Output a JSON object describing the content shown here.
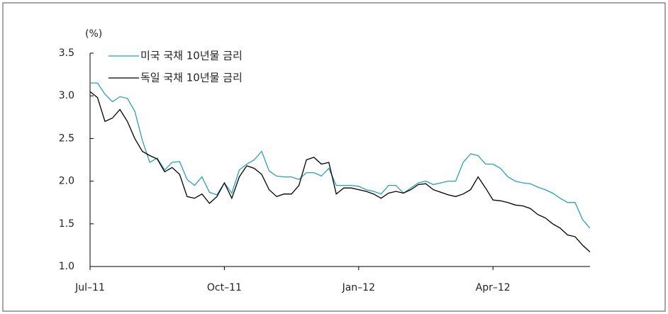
{
  "chart_data": {
    "type": "line",
    "y_label": "(%)",
    "categories": [
      "Jul–11",
      null,
      null,
      null,
      null,
      null,
      null,
      null,
      null,
      null,
      null,
      null,
      null,
      null,
      null,
      null,
      null,
      null,
      "Oct–11",
      null,
      null,
      null,
      null,
      null,
      null,
      null,
      null,
      null,
      null,
      null,
      null,
      null,
      null,
      null,
      null,
      null,
      "Jan–12",
      null,
      null,
      null,
      null,
      null,
      null,
      null,
      null,
      null,
      null,
      null,
      null,
      null,
      null,
      null,
      null,
      null,
      "Apr–12",
      null,
      null,
      null,
      null,
      null,
      null,
      null,
      null,
      null,
      null,
      null,
      null,
      null
    ],
    "series": [
      {
        "name": "미국 국채 10년물 금리",
        "color": "#2aa0b8",
        "values": [
          3.15,
          3.15,
          3.02,
          2.93,
          2.99,
          2.97,
          2.82,
          2.48,
          2.22,
          2.27,
          2.13,
          2.22,
          2.23,
          2.02,
          1.95,
          2.05,
          1.87,
          1.84,
          1.98,
          1.86,
          2.13,
          2.2,
          2.25,
          2.35,
          2.12,
          2.06,
          2.05,
          2.05,
          2.02,
          2.1,
          2.1,
          2.06,
          2.15,
          1.95,
          1.95,
          1.95,
          1.94,
          1.9,
          1.88,
          1.85,
          1.95,
          1.95,
          1.86,
          1.92,
          1.98,
          2.0,
          1.96,
          1.98,
          2.0,
          2.0,
          2.22,
          2.32,
          2.3,
          2.2,
          2.2,
          2.15,
          2.05,
          2.0,
          1.98,
          1.97,
          1.93,
          1.9,
          1.86,
          1.8,
          1.75,
          1.75,
          1.55,
          1.45
        ]
      },
      {
        "name": "독일 국채 10년물 금리",
        "color": "#000000",
        "values": [
          3.05,
          2.98,
          2.7,
          2.74,
          2.84,
          2.7,
          2.5,
          2.35,
          2.3,
          2.26,
          2.11,
          2.16,
          2.08,
          1.82,
          1.8,
          1.85,
          1.74,
          1.82,
          1.98,
          1.8,
          2.05,
          2.18,
          2.15,
          2.08,
          1.9,
          1.82,
          1.85,
          1.85,
          1.95,
          2.25,
          2.28,
          2.2,
          2.22,
          1.85,
          1.92,
          1.92,
          1.9,
          1.88,
          1.85,
          1.8,
          1.86,
          1.88,
          1.86,
          1.9,
          1.96,
          1.97,
          1.9,
          1.87,
          1.84,
          1.82,
          1.85,
          1.9,
          2.05,
          1.92,
          1.78,
          1.77,
          1.75,
          1.72,
          1.71,
          1.68,
          1.61,
          1.57,
          1.5,
          1.45,
          1.37,
          1.35,
          1.25,
          1.17
        ]
      }
    ],
    "ylim": [
      1,
      3.5
    ],
    "yticks": [
      {
        "value": 1,
        "label": "1.0"
      },
      1.5,
      {
        "value": 2,
        "label": "2.0"
      },
      2.5,
      {
        "value": 3,
        "label": "3.0"
      },
      3.5
    ],
    "grid": false,
    "legend": "upper left"
  }
}
